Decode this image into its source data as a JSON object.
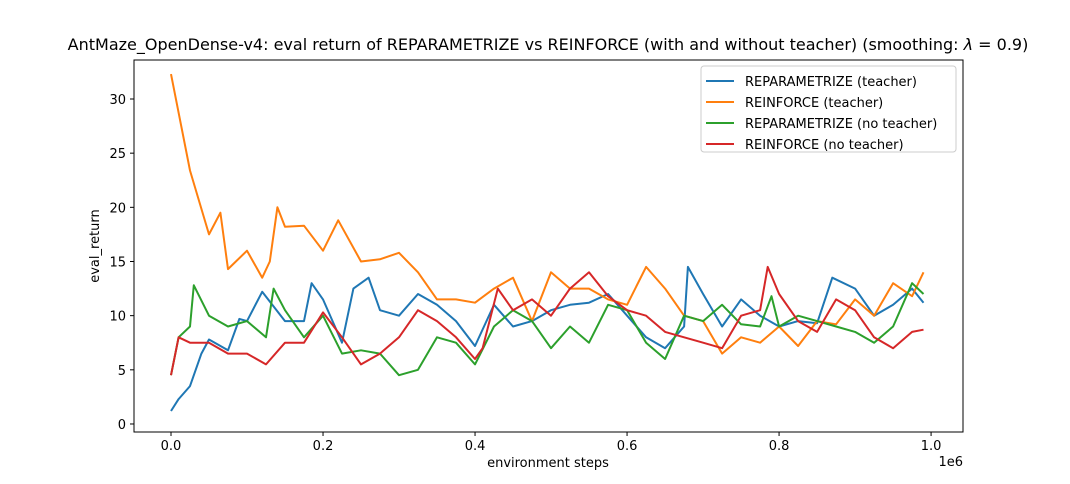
{
  "chart_data": {
    "type": "line",
    "title": "AntMaze_OpenDense-v4: eval return of REPARAMETRIZE vs REINFORCE (with and without teacher) (smoothing: λ = 0.9)",
    "xlabel": "environment steps",
    "ylabel": "eval_return",
    "x_offset_label": "1e6",
    "xlim": [
      -0.0487,
      1.042
    ],
    "ylim": [
      -0.74,
      33.6
    ],
    "xticks": [
      0.0,
      0.2,
      0.4,
      0.6,
      0.8,
      1.0
    ],
    "xtick_labels": [
      "0.0",
      "0.2",
      "0.4",
      "0.6",
      "0.8",
      "1.0"
    ],
    "yticks": [
      0,
      5,
      10,
      15,
      20,
      25,
      30
    ],
    "ytick_labels": [
      "0",
      "5",
      "10",
      "15",
      "20",
      "25",
      "30"
    ],
    "grid": false,
    "legend_placement": "top-right",
    "series": [
      {
        "name": "REPARAMETRIZE (teacher)",
        "color": "#1f77b4",
        "x": [
          0,
          0.01,
          0.025,
          0.04,
          0.05,
          0.075,
          0.09,
          0.1,
          0.12,
          0.15,
          0.175,
          0.185,
          0.2,
          0.225,
          0.24,
          0.26,
          0.275,
          0.3,
          0.325,
          0.35,
          0.375,
          0.4,
          0.425,
          0.45,
          0.475,
          0.5,
          0.525,
          0.55,
          0.575,
          0.6,
          0.625,
          0.65,
          0.675,
          0.68,
          0.7,
          0.725,
          0.75,
          0.775,
          0.8,
          0.825,
          0.85,
          0.87,
          0.9,
          0.925,
          0.95,
          0.975,
          0.99
        ],
        "y": [
          1.2,
          2.3,
          3.5,
          6.5,
          7.8,
          6.8,
          9.7,
          9.5,
          12.2,
          9.5,
          9.5,
          13,
          11.5,
          7.5,
          12.5,
          13.5,
          10.5,
          10,
          12,
          11,
          9.5,
          7.2,
          11,
          9,
          9.5,
          10.5,
          11,
          11.2,
          12,
          10,
          8,
          7,
          9,
          14.5,
          12,
          9,
          11.5,
          10,
          9,
          9.5,
          9.3,
          13.5,
          12.5,
          10,
          11,
          12.5,
          11.2
        ]
      },
      {
        "name": "REINFORCE (teacher)",
        "color": "#ff7f0e",
        "x": [
          0,
          0.025,
          0.05,
          0.065,
          0.075,
          0.1,
          0.12,
          0.13,
          0.14,
          0.15,
          0.175,
          0.2,
          0.22,
          0.25,
          0.275,
          0.3,
          0.325,
          0.35,
          0.375,
          0.4,
          0.425,
          0.45,
          0.475,
          0.5,
          0.525,
          0.55,
          0.575,
          0.6,
          0.625,
          0.65,
          0.675,
          0.7,
          0.725,
          0.75,
          0.775,
          0.8,
          0.825,
          0.85,
          0.875,
          0.9,
          0.925,
          0.95,
          0.975,
          0.99
        ],
        "y": [
          32.3,
          23.4,
          17.5,
          19.5,
          14.3,
          16,
          13.5,
          15,
          20,
          18.2,
          18.3,
          16,
          18.8,
          15,
          15.2,
          15.8,
          14,
          11.5,
          11.5,
          11.2,
          12.5,
          13.5,
          9.5,
          14,
          12.5,
          12.5,
          11.5,
          11,
          14.5,
          12.5,
          10,
          9.5,
          6.5,
          8,
          7.5,
          9,
          7.2,
          9.5,
          9.2,
          11.5,
          10,
          13,
          11.8,
          14
        ]
      },
      {
        "name": "REPARAMETRIZE (no teacher)",
        "color": "#2ca02c",
        "x": [
          0,
          0.01,
          0.025,
          0.03,
          0.05,
          0.075,
          0.1,
          0.125,
          0.135,
          0.15,
          0.175,
          0.2,
          0.225,
          0.25,
          0.275,
          0.3,
          0.325,
          0.35,
          0.375,
          0.4,
          0.425,
          0.45,
          0.475,
          0.5,
          0.525,
          0.55,
          0.575,
          0.6,
          0.625,
          0.65,
          0.675,
          0.7,
          0.725,
          0.75,
          0.775,
          0.79,
          0.8,
          0.825,
          0.85,
          0.875,
          0.9,
          0.925,
          0.95,
          0.975,
          0.99
        ],
        "y": [
          4.5,
          8,
          9,
          12.8,
          10,
          9,
          9.5,
          8,
          12.5,
          10.5,
          8,
          10,
          6.5,
          6.8,
          6.5,
          4.5,
          5,
          8,
          7.5,
          5.5,
          9,
          10.5,
          9.5,
          7,
          9,
          7.5,
          11,
          10.5,
          7.5,
          6,
          10,
          9.5,
          11,
          9.2,
          9,
          11.8,
          9,
          10,
          9.5,
          9,
          8.5,
          7.5,
          9,
          13,
          12
        ]
      },
      {
        "name": "REINFORCE (no teacher)",
        "color": "#d62728",
        "x": [
          0,
          0.01,
          0.025,
          0.05,
          0.075,
          0.1,
          0.125,
          0.15,
          0.175,
          0.2,
          0.225,
          0.25,
          0.275,
          0.3,
          0.325,
          0.35,
          0.375,
          0.4,
          0.41,
          0.43,
          0.45,
          0.475,
          0.5,
          0.525,
          0.55,
          0.575,
          0.6,
          0.625,
          0.65,
          0.675,
          0.7,
          0.725,
          0.75,
          0.775,
          0.785,
          0.8,
          0.825,
          0.85,
          0.875,
          0.9,
          0.925,
          0.95,
          0.975,
          0.99
        ],
        "y": [
          4.5,
          8,
          7.5,
          7.5,
          6.5,
          6.5,
          5.5,
          7.5,
          7.5,
          10.3,
          8,
          5.5,
          6.5,
          8,
          10.5,
          9.5,
          8,
          6,
          7,
          12.5,
          10.5,
          11.5,
          10,
          12.5,
          14,
          11.8,
          10.5,
          10,
          8.5,
          8,
          7.5,
          7,
          10,
          10.5,
          14.5,
          12,
          9.5,
          8.5,
          11.5,
          10.5,
          8,
          7,
          8.5,
          8.7
        ]
      }
    ]
  }
}
